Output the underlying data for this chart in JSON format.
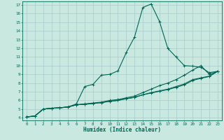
{
  "xlabel": "Humidex (Indice chaleur)",
  "bg_color": "#c8e8e0",
  "grid_color": "#a8cccc",
  "line_color": "#006655",
  "xlim": [
    -0.5,
    23.5
  ],
  "ylim": [
    3.7,
    17.4
  ],
  "yticks": [
    4,
    5,
    6,
    7,
    8,
    9,
    10,
    11,
    12,
    13,
    14,
    15,
    16,
    17
  ],
  "xticks": [
    0,
    1,
    2,
    3,
    4,
    5,
    6,
    7,
    8,
    9,
    10,
    11,
    12,
    13,
    14,
    15,
    16,
    17,
    18,
    19,
    20,
    21,
    22,
    23
  ],
  "line1_x": [
    0,
    1,
    2,
    3,
    4,
    5,
    6,
    7,
    8,
    9,
    10,
    11,
    12,
    13,
    14,
    15,
    16,
    17,
    18,
    19,
    20,
    21,
    22,
    23
  ],
  "line1_y": [
    4.1,
    4.2,
    5.0,
    5.1,
    5.15,
    5.25,
    5.6,
    7.6,
    7.85,
    8.9,
    9.0,
    9.4,
    11.5,
    13.3,
    16.7,
    17.1,
    15.1,
    12.0,
    11.0,
    10.0,
    9.95,
    9.8,
    9.2,
    9.35
  ],
  "line2_x": [
    0,
    1,
    2,
    3,
    4,
    5,
    6,
    7,
    8,
    9,
    10,
    11,
    12,
    13,
    14,
    15,
    16,
    17,
    18,
    19,
    20,
    21,
    22,
    23
  ],
  "line2_y": [
    4.1,
    4.2,
    5.0,
    5.1,
    5.15,
    5.25,
    5.5,
    5.6,
    5.7,
    5.8,
    6.0,
    6.1,
    6.3,
    6.5,
    6.9,
    7.3,
    7.7,
    8.0,
    8.4,
    8.9,
    9.5,
    10.0,
    9.0,
    9.35
  ],
  "line3_x": [
    0,
    1,
    2,
    3,
    4,
    5,
    6,
    7,
    8,
    9,
    10,
    11,
    12,
    13,
    14,
    15,
    16,
    17,
    18,
    19,
    20,
    21,
    22,
    23
  ],
  "line3_y": [
    4.1,
    4.2,
    5.0,
    5.1,
    5.15,
    5.25,
    5.5,
    5.55,
    5.65,
    5.75,
    5.9,
    6.0,
    6.2,
    6.35,
    6.65,
    6.9,
    7.1,
    7.3,
    7.6,
    7.9,
    8.4,
    8.6,
    8.8,
    9.35
  ],
  "line4_x": [
    0,
    1,
    2,
    3,
    4,
    5,
    6,
    7,
    8,
    9,
    10,
    11,
    12,
    13,
    14,
    15,
    16,
    17,
    18,
    19,
    20,
    21,
    22,
    23
  ],
  "line4_y": [
    4.1,
    4.2,
    5.0,
    5.1,
    5.15,
    5.25,
    5.5,
    5.55,
    5.65,
    5.75,
    5.9,
    6.0,
    6.2,
    6.35,
    6.65,
    6.85,
    7.05,
    7.25,
    7.5,
    7.8,
    8.3,
    8.55,
    8.75,
    9.35
  ]
}
